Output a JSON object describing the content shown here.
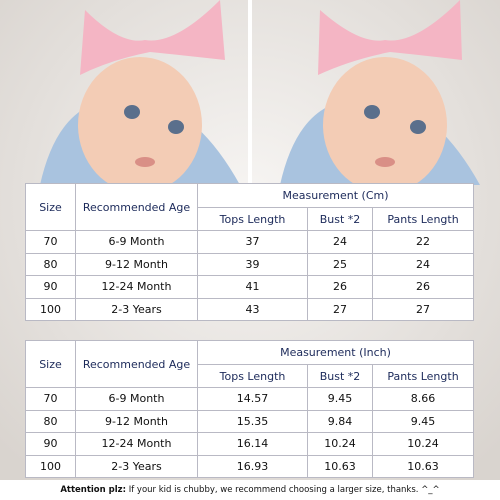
{
  "tables": [
    {
      "measurement_header": "Measurement (Cm)",
      "columns": [
        "Size",
        "Recommended Age",
        "Tops Length",
        "Bust *2",
        "Pants Length"
      ],
      "rows": [
        [
          "70",
          "6-9 Month",
          "37",
          "24",
          "22"
        ],
        [
          "80",
          "9-12 Month",
          "39",
          "25",
          "24"
        ],
        [
          "90",
          "12-24 Month",
          "41",
          "26",
          "26"
        ],
        [
          "100",
          "2-3 Years",
          "43",
          "27",
          "27"
        ]
      ]
    },
    {
      "measurement_header": "Measurement (Inch)",
      "columns": [
        "Size",
        "Recommended Age",
        "Tops Length",
        "Bust *2",
        "Pants Length"
      ],
      "rows": [
        [
          "70",
          "6-9 Month",
          "14.57",
          "9.45",
          "8.66"
        ],
        [
          "80",
          "9-12 Month",
          "15.35",
          "9.84",
          "9.45"
        ],
        [
          "90",
          "12-24 Month",
          "16.14",
          "10.24",
          "10.24"
        ],
        [
          "100",
          "2-3 Years",
          "16.93",
          "10.63",
          "10.63"
        ]
      ]
    }
  ],
  "attention": {
    "label": "Attention plz:",
    "text": "If your kid is chubby, we recommend choosing a larger size, thanks. ^_^"
  }
}
